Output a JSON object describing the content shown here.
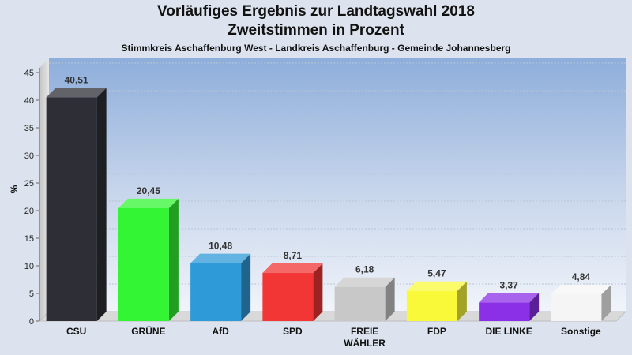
{
  "chart_data": {
    "type": "bar",
    "title": "Vorläufiges Ergebnis zur Landtagswahl 2018",
    "subtitle1": "Zweitstimmen in Prozent",
    "subtitle2": "Stimmkreis Aschaffenburg West - Landkreis Aschaffenburg - Gemeinde Johannesberg",
    "ylabel": "%",
    "ylim": [
      0,
      45
    ],
    "yticks": [
      0,
      5,
      10,
      15,
      20,
      25,
      30,
      35,
      40,
      45
    ],
    "grid": true,
    "categories": [
      [
        "CSU"
      ],
      [
        "GRÜNE"
      ],
      [
        "AfD"
      ],
      [
        "SPD"
      ],
      [
        "FREIE",
        "WÄHLER"
      ],
      [
        "FDP"
      ],
      [
        "DIE LINKE"
      ],
      [
        "Sonstige"
      ]
    ],
    "values": [
      40.51,
      20.45,
      10.48,
      8.71,
      6.18,
      5.47,
      3.37,
      4.84
    ],
    "value_labels": [
      "40,51",
      "20,45",
      "10,48",
      "8,71",
      "6,18",
      "5,47",
      "3,37",
      "4,84"
    ],
    "colors": [
      "#2e2f36",
      "#33f533",
      "#2f9ad8",
      "#f23636",
      "#c8c8c8",
      "#f9f93a",
      "#8c30e8",
      "#f5f5f5"
    ]
  }
}
